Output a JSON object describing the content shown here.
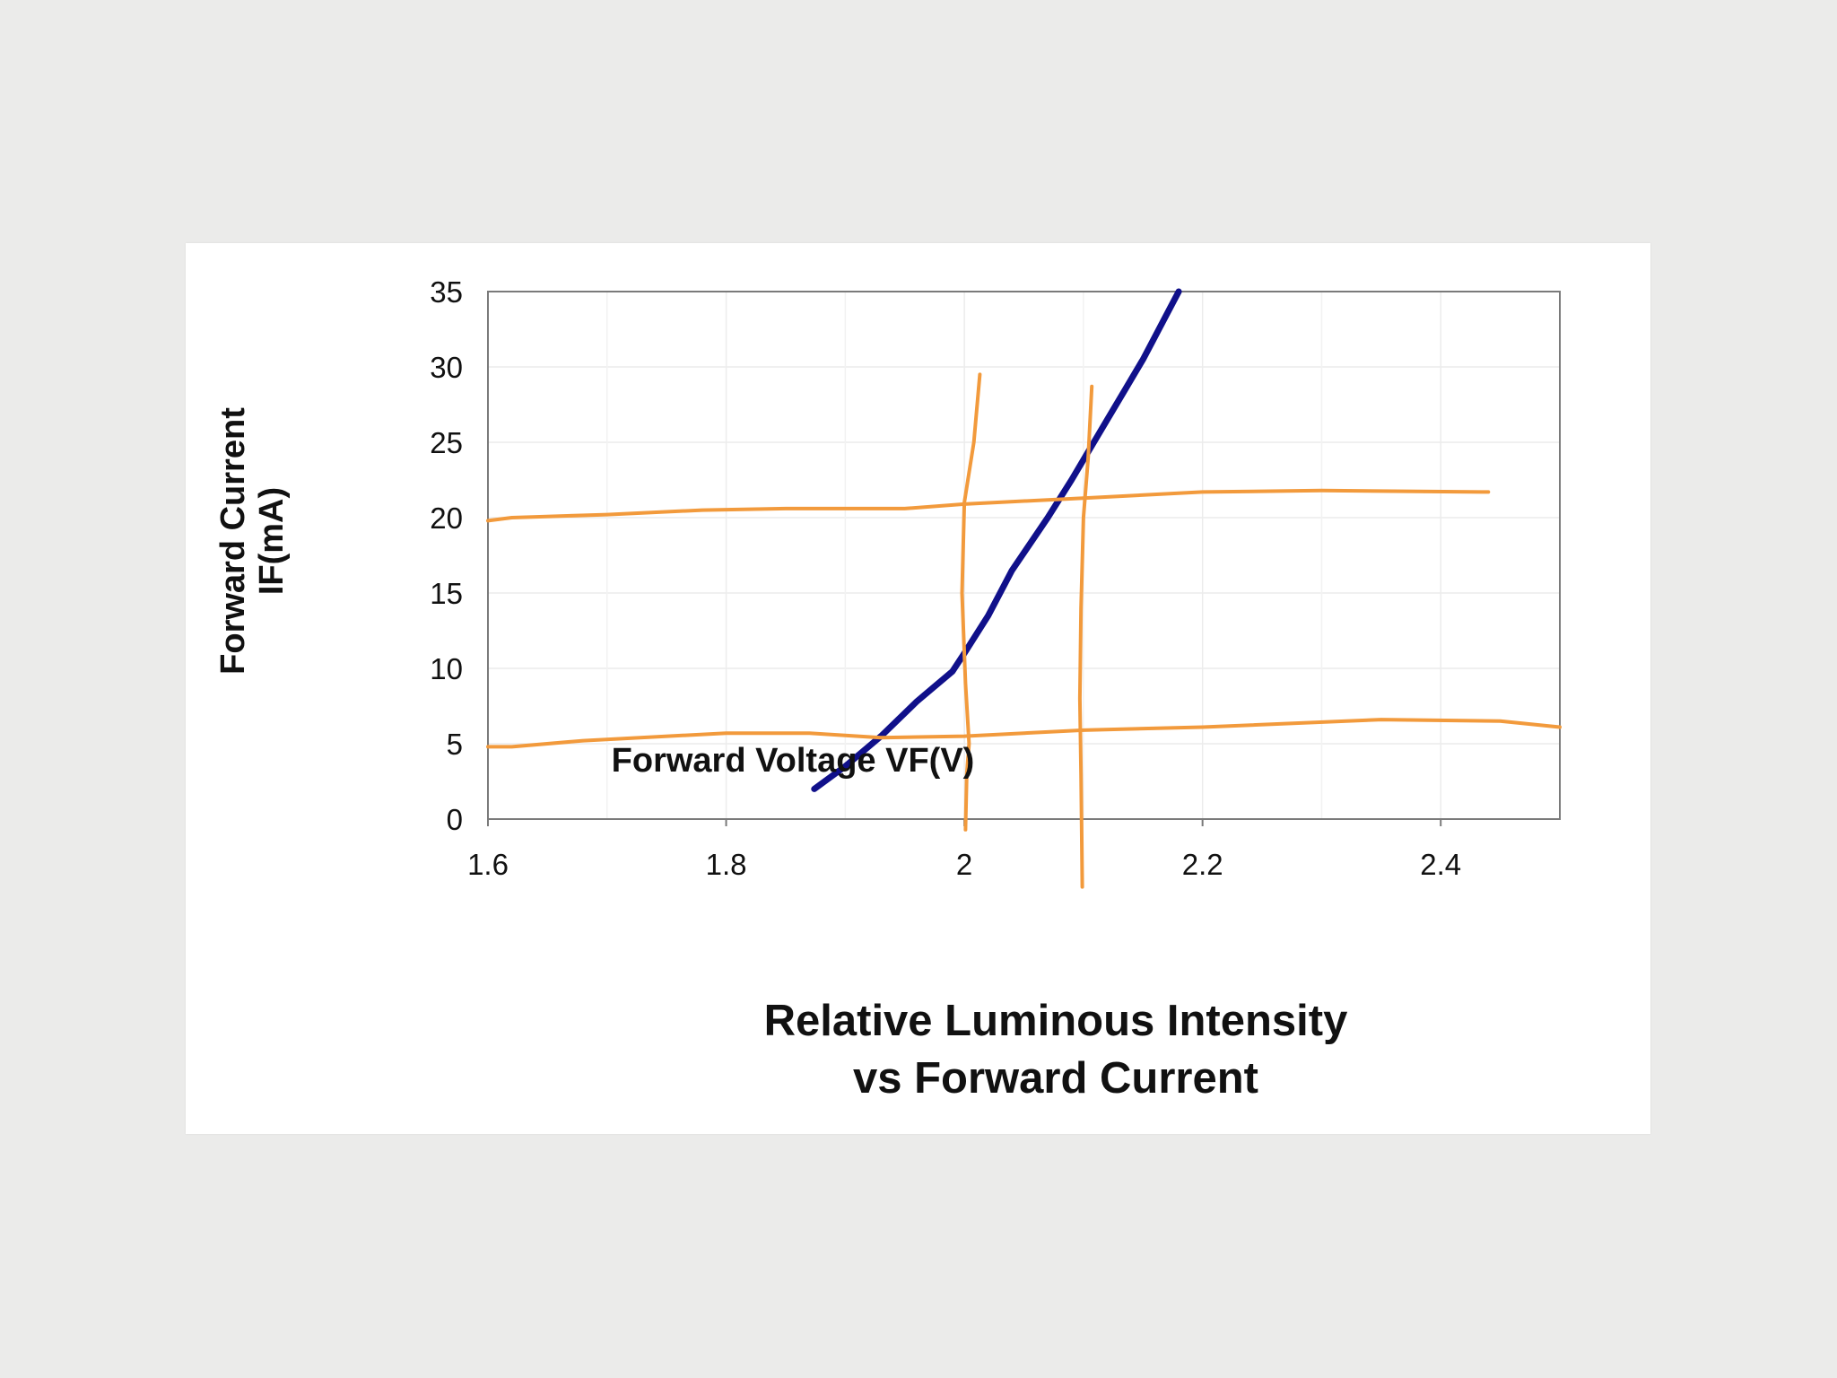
{
  "chart_data": {
    "type": "line",
    "title_lines": [
      "Relative Luminous Intensity",
      "vs Forward Current"
    ],
    "xlabel": "Forward Voltage VF(V)",
    "ylabel_lines": [
      "Forward Current",
      "IF(mA)"
    ],
    "xlim": [
      1.6,
      2.5
    ],
    "ylim": [
      0,
      35
    ],
    "x_ticks": [
      "1.6",
      "1.8",
      "2",
      "2.2",
      "2.4"
    ],
    "y_ticks": [
      "0",
      "5",
      "10",
      "15",
      "20",
      "25",
      "30",
      "35"
    ],
    "grid": true,
    "series": [
      {
        "color": "#10108a",
        "x": [
          1.874,
          1.9,
          1.93,
          1.96,
          1.99,
          2.0,
          2.02,
          2.04,
          2.07,
          2.09,
          2.105,
          2.12,
          2.135,
          2.15,
          2.16,
          2.17,
          2.18
        ],
        "y": [
          2,
          3.5,
          5.5,
          7.8,
          9.8,
          11,
          13.5,
          16.5,
          20,
          22.5,
          24.5,
          26.5,
          28.5,
          30.5,
          32,
          33.5,
          35
        ]
      }
    ],
    "annotations": [
      {
        "kind": "hand-drawn horizontal line",
        "color": "#f29a3c",
        "x": [
          1.6,
          1.62,
          1.7,
          1.78,
          1.85,
          1.95,
          2.0,
          2.1,
          2.2,
          2.3,
          2.44
        ],
        "y": [
          19.8,
          20.0,
          20.2,
          20.5,
          20.6,
          20.6,
          20.9,
          21.3,
          21.7,
          21.8,
          21.7
        ]
      },
      {
        "kind": "hand-drawn horizontal line",
        "color": "#f29a3c",
        "x": [
          1.6,
          1.62,
          1.68,
          1.8,
          1.87,
          1.93,
          2.0,
          2.1,
          2.2,
          2.35,
          2.45,
          2.5
        ],
        "y": [
          4.8,
          4.8,
          5.2,
          5.7,
          5.7,
          5.4,
          5.5,
          5.9,
          6.1,
          6.6,
          6.5,
          6.1
        ]
      },
      {
        "kind": "hand-drawn vertical line",
        "color": "#f29a3c",
        "x": [
          2.013,
          2.008,
          2.0,
          1.998,
          2.001,
          2.004,
          2.002,
          2.001
        ],
        "y": [
          29.5,
          25.0,
          21.0,
          15.0,
          9.0,
          5.0,
          3.0,
          -0.7
        ]
      },
      {
        "kind": "hand-drawn vertical line",
        "color": "#f29a3c",
        "x": [
          2.107,
          2.104,
          2.1,
          2.098,
          2.097,
          2.098,
          2.099
        ],
        "y": [
          28.7,
          24.0,
          20.0,
          14.0,
          8.0,
          3.0,
          -4.5
        ]
      }
    ]
  }
}
